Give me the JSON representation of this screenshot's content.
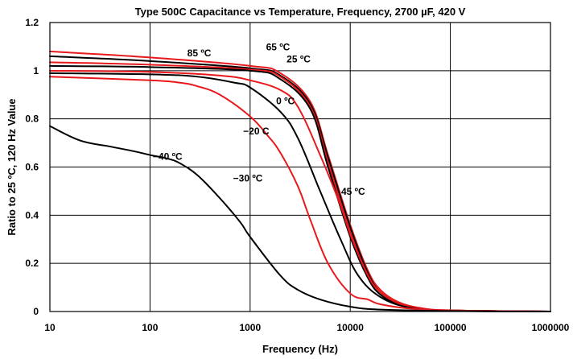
{
  "chart_data": {
    "type": "line",
    "title": "Type 500C Capacitance vs Temperature, Frequency,  2700 µF, 420 V",
    "xlabel": "Frequency (Hz)",
    "ylabel": "Ratio to 25 ºC, 120 Hz Value",
    "x_scale": "log",
    "xlim": [
      10,
      1000000
    ],
    "ylim": [
      0,
      1.2
    ],
    "x_ticks": [
      10,
      100,
      1000,
      10000,
      100000,
      1000000
    ],
    "x_tick_labels": [
      "10",
      "100",
      "1000",
      "10000",
      "100000",
      "1000000"
    ],
    "y_ticks": [
      0,
      0.2,
      0.4,
      0.6,
      0.8,
      1,
      1.2
    ],
    "y_tick_labels": [
      "0",
      "0.2",
      "0.4",
      "0.6",
      "0.8",
      "1",
      "1.2"
    ],
    "grid": true,
    "series_colors": {
      "red": "#e8191c",
      "black": "#000000"
    },
    "series": [
      {
        "color": "red",
        "x": [
          10,
          100,
          1000,
          2000,
          4000,
          6000,
          10000,
          15000,
          20000,
          30000,
          50000,
          100000,
          1000000
        ],
        "y": [
          1.08,
          1.055,
          1.02,
          0.99,
          0.87,
          0.65,
          0.36,
          0.17,
          0.09,
          0.04,
          0.015,
          0.005,
          0.0
        ]
      },
      {
        "color": "black",
        "x": [
          10,
          100,
          1000,
          2000,
          4000,
          6000,
          10000,
          15000,
          20000,
          30000,
          50000,
          100000,
          1000000
        ],
        "y": [
          1.06,
          1.04,
          1.01,
          0.98,
          0.86,
          0.64,
          0.35,
          0.16,
          0.08,
          0.035,
          0.012,
          0.004,
          0.0
        ]
      },
      {
        "color": "red",
        "x": [
          10,
          100,
          1000,
          2000,
          4000,
          6000,
          10000,
          15000,
          20000,
          30000,
          50000,
          100000,
          1000000
        ],
        "y": [
          1.035,
          1.025,
          1.005,
          0.975,
          0.85,
          0.62,
          0.33,
          0.15,
          0.08,
          0.035,
          0.012,
          0.004,
          0.0
        ]
      },
      {
        "color": "black",
        "x": [
          10,
          100,
          1000,
          2000,
          4000,
          6000,
          10000,
          15000,
          20000,
          30000,
          50000,
          100000,
          1000000
        ],
        "y": [
          1.02,
          1.015,
          1.0,
          0.965,
          0.84,
          0.6,
          0.31,
          0.14,
          0.07,
          0.03,
          0.01,
          0.004,
          0.0
        ]
      },
      {
        "color": "red",
        "x": [
          10,
          100,
          500,
          1000,
          2000,
          3000,
          5000,
          8000,
          10000,
          15000,
          20000,
          30000,
          50000,
          100000,
          1000000
        ],
        "y": [
          1.0,
          0.995,
          0.98,
          0.96,
          0.92,
          0.85,
          0.65,
          0.44,
          0.32,
          0.15,
          0.08,
          0.035,
          0.012,
          0.004,
          0.0
        ]
      },
      {
        "color": "black",
        "x": [
          10,
          100,
          300,
          700,
          1000,
          2000,
          3000,
          5000,
          8000,
          12000,
          20000,
          40000,
          100000,
          1000000
        ],
        "y": [
          0.99,
          0.985,
          0.975,
          0.95,
          0.93,
          0.83,
          0.72,
          0.5,
          0.3,
          0.15,
          0.06,
          0.015,
          0.003,
          0.0
        ]
      },
      {
        "color": "red",
        "x": [
          10,
          100,
          200,
          300,
          500,
          1000,
          1500,
          2000,
          3000,
          4000,
          6000,
          10000,
          15000,
          20000,
          40000,
          100000,
          1000000
        ],
        "y": [
          0.975,
          0.96,
          0.95,
          0.935,
          0.9,
          0.81,
          0.73,
          0.66,
          0.52,
          0.38,
          0.2,
          0.075,
          0.05,
          0.03,
          0.012,
          0.004,
          0.0
        ]
      },
      {
        "color": "black",
        "x": [
          10,
          20,
          40,
          70,
          100,
          150,
          200,
          300,
          500,
          800,
          1000,
          2000,
          3000,
          5000,
          10000,
          20000,
          100000,
          1000000
        ],
        "y": [
          0.77,
          0.71,
          0.685,
          0.665,
          0.65,
          0.635,
          0.615,
          0.565,
          0.47,
          0.37,
          0.31,
          0.15,
          0.09,
          0.05,
          0.02,
          0.008,
          0.002,
          0.0
        ]
      }
    ],
    "annotations": [
      {
        "text": "85 ºC",
        "x": 310,
        "y": 1.06
      },
      {
        "text": "65 ºC",
        "x": 1900,
        "y": 1.085
      },
      {
        "text": "25 ºC",
        "x": 3050,
        "y": 1.035
      },
      {
        "text": "0 ºC",
        "x": 2250,
        "y": 0.86
      },
      {
        "text": "45 ºC",
        "x": 10700,
        "y": 0.485
      },
      {
        "text": "−20  C",
        "x": 1150,
        "y": 0.735
      },
      {
        "text": "−40 ºC",
        "x": 150,
        "y": 0.63
      },
      {
        "text": "−30 ºC",
        "x": 950,
        "y": 0.54
      }
    ]
  }
}
